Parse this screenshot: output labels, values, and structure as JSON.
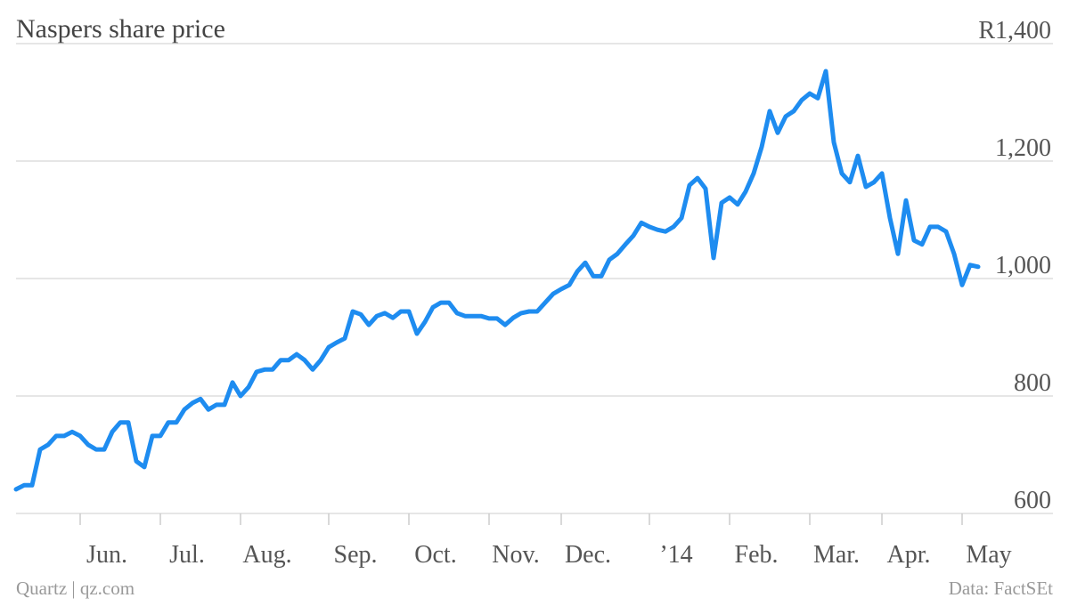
{
  "chart_data": {
    "type": "line",
    "title": "Naspers share price",
    "footer_left": "Quartz | qz.com",
    "footer_right": "Data: FactSEt",
    "categories": [
      null,
      null,
      null,
      null,
      null,
      null,
      null,
      null,
      "Jun.",
      null,
      null,
      null,
      null,
      null,
      null,
      null,
      null,
      null,
      "Jul.",
      null,
      null,
      null,
      null,
      null,
      null,
      null,
      null,
      null,
      "Aug.",
      null,
      null,
      null,
      null,
      null,
      null,
      null,
      null,
      null,
      null,
      "Sep.",
      null,
      null,
      null,
      null,
      null,
      null,
      null,
      null,
      null,
      "Oct.",
      null,
      null,
      null,
      null,
      null,
      null,
      null,
      null,
      null,
      "Nov.",
      null,
      null,
      null,
      null,
      null,
      null,
      null,
      null,
      "Dec.",
      null,
      null,
      null,
      null,
      null,
      null,
      null,
      null,
      null,
      null,
      "’14",
      null,
      null,
      null,
      null,
      null,
      null,
      null,
      null,
      null,
      "Feb.",
      null,
      null,
      null,
      null,
      null,
      null,
      null,
      null,
      null,
      "Mar.",
      null,
      null,
      null,
      null,
      null,
      null,
      null,
      null,
      "Apr.",
      null,
      null,
      null,
      null,
      null,
      null,
      null,
      null,
      null,
      "May",
      null,
      null
    ],
    "series": [
      {
        "name": "Naspers",
        "color": "#1e8cf0",
        "values": [
          641,
          648,
          648,
          709,
          717,
          732,
          732,
          739,
          732,
          717,
          709,
          709,
          739,
          755,
          755,
          689,
          679,
          732,
          732,
          755,
          755,
          777,
          788,
          795,
          777,
          785,
          785,
          823,
          800,
          815,
          841,
          845,
          845,
          861,
          861,
          871,
          861,
          845,
          861,
          883,
          891,
          898,
          944,
          939,
          921,
          936,
          941,
          933,
          944,
          944,
          906,
          926,
          951,
          959,
          959,
          941,
          936,
          936,
          936,
          932,
          932,
          921,
          933,
          941,
          944,
          944,
          959,
          974,
          982,
          989,
          1012,
          1027,
          1004,
          1004,
          1032,
          1042,
          1058,
          1073,
          1095,
          1088,
          1083,
          1080,
          1088,
          1103,
          1159,
          1171,
          1153,
          1035,
          1129,
          1138,
          1126,
          1148,
          1179,
          1224,
          1285,
          1248,
          1276,
          1285,
          1304,
          1315,
          1307,
          1353,
          1232,
          1179,
          1164,
          1209,
          1156,
          1164,
          1179,
          1103,
          1042,
          1133,
          1065,
          1058,
          1088,
          1088,
          1080,
          1042,
          989,
          1023,
          1020
        ]
      }
    ],
    "ylim": [
      600,
      1400
    ],
    "yticks": [
      600,
      800,
      {
        "value": 1000,
        "label": "1,000"
      },
      {
        "value": 1200,
        "label": "1,200"
      },
      {
        "value": 1400,
        "label": "R1,400"
      }
    ],
    "grid": true
  }
}
